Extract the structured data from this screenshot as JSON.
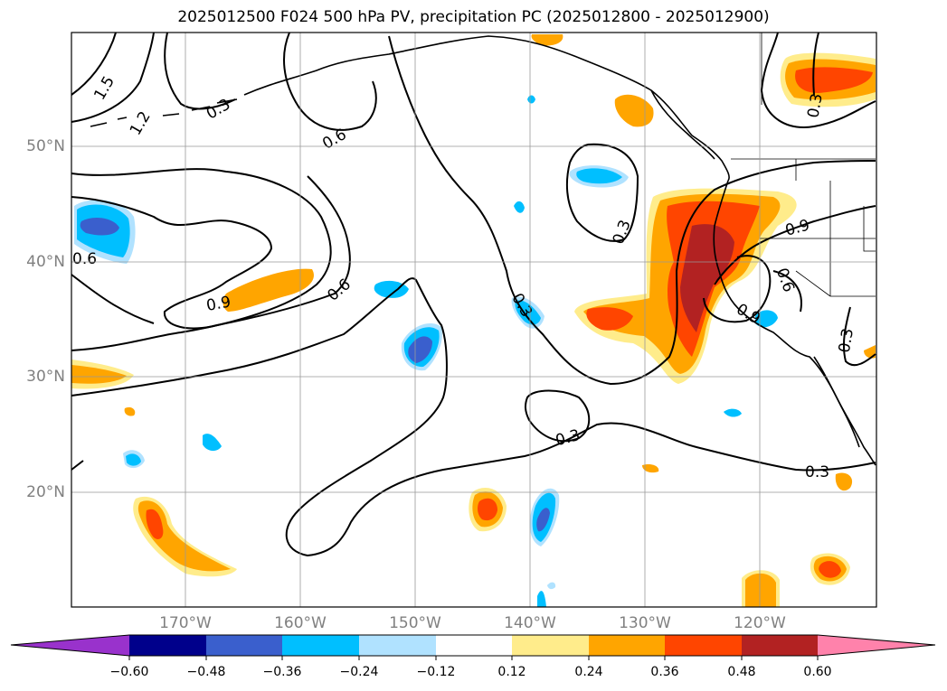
{
  "title": "2025012500 F024 500 hPa PV, precipitation PC (2025012800 - 2025012900)",
  "map": {
    "region": "North Pacific",
    "lat_labels": [
      "50°N",
      "40°N",
      "30°N",
      "20°N"
    ],
    "lon_labels": [
      "170°W",
      "160°W",
      "150°W",
      "140°W",
      "130°W",
      "120°W"
    ],
    "pv_contour_labels": [
      "1.5",
      "1.2",
      "0.3",
      "0.6",
      "0.6",
      "0.9",
      "0.6",
      "0.3",
      "0.3",
      "0.3",
      "0.9",
      "0.6",
      "0.9",
      "0.3",
      "0.3",
      "0.3"
    ],
    "grid": true
  },
  "colorbar": {
    "ticks": [
      "−0.60",
      "−0.48",
      "−0.36",
      "−0.24",
      "−0.12",
      "0.12",
      "0.24",
      "0.36",
      "0.48",
      "0.60"
    ],
    "colors": [
      "#9932cc",
      "#00008b",
      "#3a5fcd",
      "#00bfff",
      "#b0e2ff",
      "#ffffff",
      "#ffec8b",
      "#ffa500",
      "#ff4500",
      "#b22222",
      "#ff82ab"
    ]
  }
}
